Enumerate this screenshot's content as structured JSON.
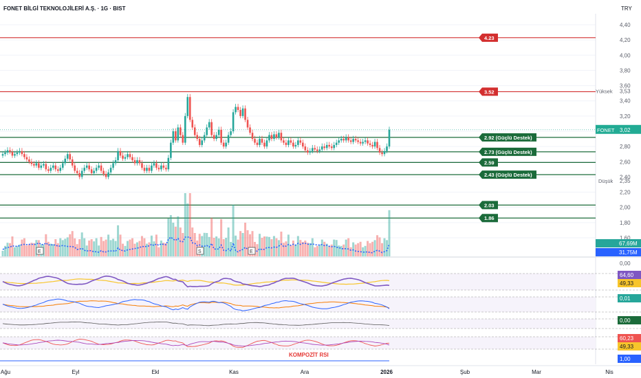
{
  "header": {
    "title": "FONET BİLGİ TEKNOLOJİLERİ A.Ş. · 1G · BIST",
    "currency": "TRY"
  },
  "colors": {
    "up": "#26a69a",
    "down": "#ef5350",
    "resistance": "#d32f2f",
    "support": "#1b6b3a",
    "price_tag": "#22ab94",
    "vol_ma": "#2962ff",
    "rsi_line": "#7e57c2",
    "rsi_ma": "#f7c52b",
    "grid": "#f0f3fa",
    "axis_text": "#131722"
  },
  "chart_data": {
    "type": "candlestick",
    "symbol": "FONET",
    "interval": "1G",
    "exchange": "BIST",
    "last_price": "3,02",
    "high_label": "Yüksek",
    "high_value": "3,53",
    "low_label": "Düşük",
    "low_value": "2,35",
    "y_axis_ticks": [
      "4,40",
      "4,20",
      "4,00",
      "3,80",
      "3,60",
      "3,40",
      "3,20",
      "3,00",
      "2,80",
      "2,60",
      "2,40",
      "2,20",
      "2,00",
      "1,80",
      "1,60"
    ],
    "ylim": [
      1.55,
      4.45
    ],
    "x_axis_ticks": [
      "Ağu",
      "Eyl",
      "Ekl",
      "Kas",
      "Ara",
      "2026",
      "Şub",
      "Mar",
      "Nis"
    ],
    "levels": [
      {
        "value": 4.23,
        "label": "4.23",
        "kind": "resistance"
      },
      {
        "value": 3.52,
        "label": "3.52",
        "kind": "resistance"
      },
      {
        "value": 2.92,
        "label": "2.92 (Güçlü Destek)",
        "kind": "support"
      },
      {
        "value": 2.73,
        "label": "2.73 (Güçlü Destek)",
        "kind": "support"
      },
      {
        "value": 2.59,
        "label": "2.59",
        "kind": "support"
      },
      {
        "value": 2.43,
        "label": "2.43 (Güçlü Destek)",
        "kind": "support"
      },
      {
        "value": 2.03,
        "label": "2.03",
        "kind": "support"
      },
      {
        "value": 1.86,
        "label": "1.86",
        "kind": "support"
      }
    ],
    "candles_close": [
      2.7,
      2.72,
      2.75,
      2.73,
      2.68,
      2.7,
      2.72,
      2.74,
      2.7,
      2.66,
      2.63,
      2.6,
      2.57,
      2.55,
      2.58,
      2.52,
      2.55,
      2.57,
      2.5,
      2.48,
      2.52,
      2.55,
      2.5,
      2.48,
      2.52,
      2.58,
      2.64,
      2.7,
      2.63,
      2.55,
      2.48,
      2.45,
      2.4,
      2.48,
      2.52,
      2.55,
      2.5,
      2.45,
      2.48,
      2.52,
      2.55,
      2.48,
      2.44,
      2.4,
      2.46,
      2.52,
      2.58,
      2.62,
      2.74,
      2.68,
      2.64,
      2.66,
      2.7,
      2.66,
      2.62,
      2.58,
      2.62,
      2.58,
      2.52,
      2.48,
      2.52,
      2.48,
      2.55,
      2.58,
      2.52,
      2.5,
      2.55,
      2.52,
      2.5,
      2.65,
      2.85,
      3.0,
      2.88,
      3.05,
      2.95,
      2.85,
      3.2,
      3.45,
      3.15,
      3.05,
      2.95,
      2.9,
      2.82,
      2.88,
      2.95,
      3.05,
      3.12,
      2.95,
      2.9,
      2.95,
      3.02,
      2.85,
      2.8,
      2.85,
      2.95,
      3.0,
      3.25,
      3.32,
      3.28,
      3.2,
      3.3,
      3.15,
      3.05,
      2.98,
      2.9,
      2.85,
      2.82,
      2.9,
      2.85,
      2.8,
      2.88,
      2.95,
      2.9,
      2.96,
      2.92,
      2.98,
      2.88,
      2.85,
      2.82,
      2.88,
      2.85,
      2.8,
      2.82,
      2.88,
      2.85,
      2.8,
      2.75,
      2.72,
      2.74,
      2.78,
      2.76,
      2.74,
      2.76,
      2.8,
      2.78,
      2.82,
      2.8,
      2.78,
      2.82,
      2.85,
      2.88,
      2.9,
      2.88,
      2.92,
      2.88,
      2.86,
      2.9,
      2.88,
      2.86,
      2.84,
      2.86,
      2.88,
      2.84,
      2.82,
      2.8,
      2.86,
      2.78,
      2.72,
      2.7,
      2.74,
      2.8,
      3.02
    ],
    "volume_labels": [
      "67,69M",
      "31,75M"
    ],
    "rsi_values": [
      "64,60",
      "49,33"
    ],
    "macd_value": "0,01",
    "osc_value": "0,00",
    "komposit_values": [
      "60,23",
      "49,33"
    ],
    "bottom_value": "1,00",
    "pane_axis_top": "0,00",
    "pane_label": "KOMPOZİT RSI",
    "events": [
      "E",
      "S",
      "E"
    ]
  }
}
